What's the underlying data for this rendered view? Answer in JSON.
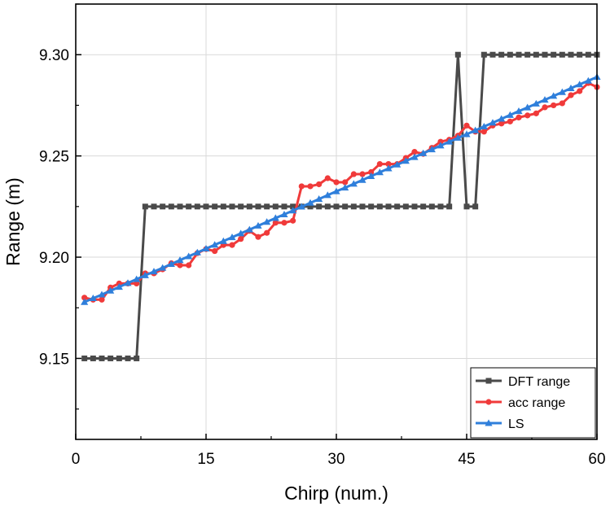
{
  "chart_data": {
    "type": "line",
    "title": "",
    "xlabel": "Chirp (num.)",
    "ylabel": "Range (m)",
    "xlim": [
      0,
      60
    ],
    "ylim": [
      9.11,
      9.325
    ],
    "xticks": [
      0,
      15,
      30,
      45,
      60
    ],
    "xtick_labels": [
      "0",
      "15",
      "30",
      "45",
      "60"
    ],
    "yticks": [
      9.15,
      9.2,
      9.25,
      9.3
    ],
    "ytick_labels": [
      "9.15",
      "9.20",
      "9.25",
      "9.30"
    ],
    "grid": true,
    "legend_position": "bottom-right",
    "x": [
      1,
      2,
      3,
      4,
      5,
      6,
      7,
      8,
      9,
      10,
      11,
      12,
      13,
      14,
      15,
      16,
      17,
      18,
      19,
      20,
      21,
      22,
      23,
      24,
      25,
      26,
      27,
      28,
      29,
      30,
      31,
      32,
      33,
      34,
      35,
      36,
      37,
      38,
      39,
      40,
      41,
      42,
      43,
      44,
      45,
      46,
      47,
      48,
      49,
      50,
      51,
      52,
      53,
      54,
      55,
      56,
      57,
      58,
      59,
      60
    ],
    "series": [
      {
        "name": "DFT range",
        "color": "#4a4a4a",
        "marker": "square",
        "values": [
          9.15,
          9.15,
          9.15,
          9.15,
          9.15,
          9.15,
          9.15,
          9.225,
          9.225,
          9.225,
          9.225,
          9.225,
          9.225,
          9.225,
          9.225,
          9.225,
          9.225,
          9.225,
          9.225,
          9.225,
          9.225,
          9.225,
          9.225,
          9.225,
          9.225,
          9.225,
          9.225,
          9.225,
          9.225,
          9.225,
          9.225,
          9.225,
          9.225,
          9.225,
          9.225,
          9.225,
          9.225,
          9.225,
          9.225,
          9.225,
          9.225,
          9.225,
          9.225,
          9.3,
          9.225,
          9.225,
          9.3,
          9.3,
          9.3,
          9.3,
          9.3,
          9.3,
          9.3,
          9.3,
          9.3,
          9.3,
          9.3,
          9.3,
          9.3,
          9.3
        ]
      },
      {
        "name": "acc range",
        "color": "#f03a3a",
        "marker": "circle",
        "values": [
          9.18,
          9.179,
          9.179,
          9.185,
          9.187,
          9.187,
          9.187,
          9.192,
          9.192,
          9.194,
          9.197,
          9.196,
          9.196,
          9.202,
          9.204,
          9.203,
          9.206,
          9.206,
          9.209,
          9.213,
          9.21,
          9.212,
          9.217,
          9.217,
          9.218,
          9.235,
          9.235,
          9.236,
          9.239,
          9.237,
          9.237,
          9.241,
          9.241,
          9.242,
          9.246,
          9.246,
          9.246,
          9.249,
          9.252,
          9.251,
          9.254,
          9.257,
          9.258,
          9.26,
          9.265,
          9.262,
          9.262,
          9.265,
          9.266,
          9.267,
          9.269,
          9.27,
          9.271,
          9.274,
          9.275,
          9.276,
          9.28,
          9.282,
          9.286,
          9.284
        ]
      },
      {
        "name": "LS",
        "color": "#2f7fdb",
        "marker": "triangle",
        "values": [
          9.1778,
          9.1797,
          9.1815,
          9.1834,
          9.1853,
          9.1872,
          9.1891,
          9.191,
          9.1929,
          9.1947,
          9.1966,
          9.1985,
          9.2004,
          9.2023,
          9.2042,
          9.2061,
          9.2079,
          9.2098,
          9.2117,
          9.2136,
          9.2155,
          9.2174,
          9.2193,
          9.2211,
          9.223,
          9.2249,
          9.2268,
          9.2287,
          9.2306,
          9.2325,
          9.2343,
          9.2362,
          9.2381,
          9.24,
          9.2419,
          9.2438,
          9.2457,
          9.2475,
          9.2494,
          9.2513,
          9.2532,
          9.2551,
          9.257,
          9.2589,
          9.2607,
          9.2626,
          9.2645,
          9.2664,
          9.2683,
          9.2702,
          9.2721,
          9.2739,
          9.2758,
          9.2777,
          9.2796,
          9.2815,
          9.2834,
          9.2853,
          9.2871,
          9.289
        ]
      }
    ]
  }
}
